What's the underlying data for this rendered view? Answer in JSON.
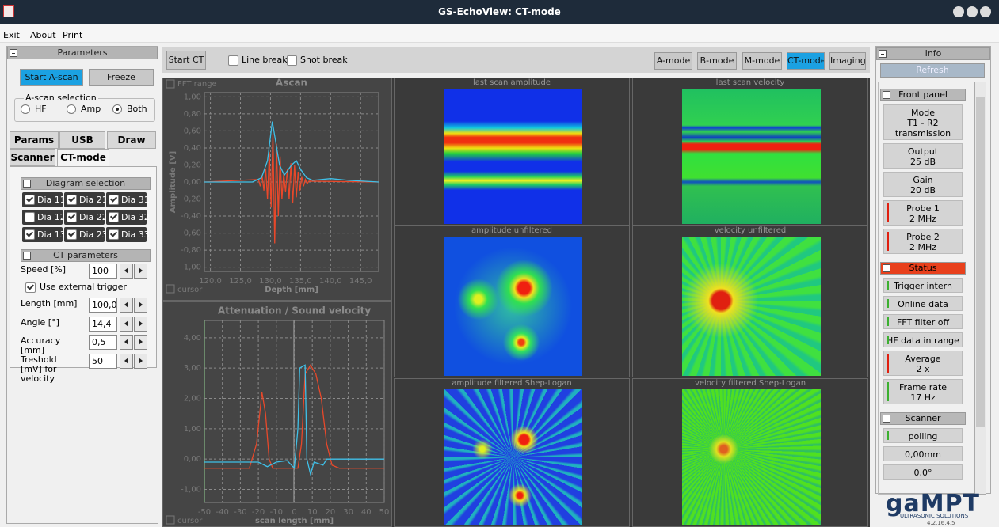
{
  "window": {
    "title": "GS-EchoView: CT-mode"
  },
  "menu": [
    "Exit",
    "About",
    "Print"
  ],
  "parameters": {
    "title": "Parameters",
    "start": "Start A-scan",
    "freeze": "Freeze",
    "selection_label": "A-scan selection",
    "options": [
      "HF",
      "Amp",
      "Both"
    ],
    "selected": 2
  },
  "tabs": {
    "row1": [
      "Params",
      "USB",
      "Draw"
    ],
    "row2": [
      "Scanner",
      "CT-mode"
    ],
    "active": "CT-mode"
  },
  "diagram_selection": {
    "title": "Diagram selection",
    "items": [
      {
        "label": "Dia 11",
        "checked": true
      },
      {
        "label": "Dia 21",
        "checked": true
      },
      {
        "label": "Dia 31",
        "checked": true
      },
      {
        "label": "Dia 12",
        "checked": false
      },
      {
        "label": "Dia 22",
        "checked": true
      },
      {
        "label": "Dia 32",
        "checked": true
      },
      {
        "label": "Dia 13",
        "checked": true
      },
      {
        "label": "Dia 23",
        "checked": true
      },
      {
        "label": "Dia 33",
        "checked": true
      }
    ]
  },
  "ct_parameters": {
    "title": "CT parameters",
    "speed": {
      "label": "Speed [%]",
      "value": "100"
    },
    "external_trigger": {
      "label": "Use external trigger",
      "checked": true
    },
    "fields": [
      {
        "label": "Length [mm]",
        "value": "100,0"
      },
      {
        "label": "Angle [°]",
        "value": "14,4"
      },
      {
        "label": "Accuracy [mm]",
        "value": "0,5"
      },
      {
        "label": "Treshold [mV] for velocity",
        "value": "50"
      }
    ]
  },
  "toolbar": {
    "start": "Start CT",
    "line_break": "Line break",
    "shot_break": "Shot break",
    "modes": [
      "A-mode",
      "B-mode",
      "M-mode",
      "CT-mode",
      "Imaging"
    ],
    "active_mode": 3
  },
  "ascan": {
    "fft": "FFT range",
    "title": "Ascan",
    "ylabel": "Amplitude [V]",
    "xlabel": "Depth [mm]",
    "cursor": "cursor",
    "xlim": [
      119,
      148
    ],
    "ylim": [
      -1.05,
      1.05
    ],
    "xticks": [
      {
        "value": 120,
        "label": "120,0"
      },
      {
        "value": 125,
        "label": "125,0"
      },
      {
        "value": 130,
        "label": "130,0"
      },
      {
        "value": 135,
        "label": "135,0"
      },
      {
        "value": 140,
        "label": "140,0"
      },
      {
        "value": 145,
        "label": "145,0"
      }
    ],
    "yticks": [
      {
        "value": 1,
        "label": "1,00"
      },
      {
        "value": 0.8,
        "label": "0,80"
      },
      {
        "value": 0.6,
        "label": "0,60"
      },
      {
        "value": 0.4,
        "label": "0,40"
      },
      {
        "value": 0.2,
        "label": "0,20"
      },
      {
        "value": 0,
        "label": "0,00"
      },
      {
        "value": -0.2,
        "label": "-0,20"
      },
      {
        "value": -0.4,
        "label": "-0,40"
      },
      {
        "value": -0.6,
        "label": "-0,60"
      },
      {
        "value": -0.8,
        "label": "-0,80"
      },
      {
        "value": -1,
        "label": "-1,00"
      }
    ],
    "series": [
      {
        "color": "#e8482a",
        "x": [
          119,
          128.0,
          128.3,
          128.6,
          128.9,
          129.2,
          129.5,
          129.8,
          130.1,
          130.4,
          130.7,
          131.0,
          131.3,
          131.6,
          131.9,
          132.2,
          132.5,
          132.8,
          133.1,
          133.4,
          133.7,
          134.0,
          134.3,
          134.6,
          134.9,
          135.2,
          135.5,
          135.8,
          136.1,
          136.4,
          148
        ],
        "values": [
          0,
          0.03,
          -0.05,
          0.08,
          -0.1,
          0.15,
          -0.2,
          0.35,
          -0.3,
          0.57,
          -0.72,
          0.45,
          -0.4,
          0.3,
          -0.2,
          0.1,
          -0.12,
          0.15,
          -0.2,
          0.22,
          -0.25,
          0.2,
          -0.18,
          0.12,
          -0.1,
          0.06,
          -0.05,
          0.03,
          -0.02,
          0.01,
          0
        ]
      },
      {
        "color": "#3fc0e8",
        "x": [
          119,
          127,
          128.5,
          129.5,
          130.3,
          130.8,
          131.5,
          132.3,
          133.5,
          134.3,
          135,
          136,
          137,
          140,
          143,
          148
        ],
        "values": [
          0,
          0,
          0.05,
          0.25,
          0.71,
          0.5,
          0.2,
          0.08,
          0.2,
          0.25,
          0.15,
          0.05,
          0.02,
          0.04,
          0.02,
          0
        ]
      }
    ]
  },
  "attenuation": {
    "title": "Attenuation / Sound velocity",
    "xlabel": "scan length [mm]",
    "cursor": "cursor",
    "xlim": [
      -50,
      50
    ],
    "ylim": [
      -1.43,
      4.57
    ],
    "xticks": [
      -50,
      -40,
      -30,
      -20,
      -10,
      0,
      10,
      20,
      30,
      40,
      50
    ],
    "yticks": [
      {
        "value": 4,
        "label": "4,00"
      },
      {
        "value": 3,
        "label": "3,00"
      },
      {
        "value": 2,
        "label": "2,00"
      },
      {
        "value": 1,
        "label": "1,00"
      },
      {
        "value": 0,
        "label": "0,00"
      },
      {
        "value": -1,
        "label": "-1,00"
      }
    ],
    "series": [
      {
        "color": "#e8482a",
        "x": [
          -50,
          -25,
          -21,
          -18,
          -16,
          -14,
          -12,
          2,
          4,
          6,
          9,
          12,
          15,
          18,
          21,
          25,
          50
        ],
        "values": [
          -0.3,
          -0.3,
          0.5,
          2.2,
          1.5,
          0,
          -0.3,
          -0.3,
          0.5,
          2.8,
          3.1,
          2.8,
          2,
          0.5,
          -0.2,
          -0.3,
          -0.3
        ]
      },
      {
        "color": "#3fc0e8",
        "x": [
          -50,
          -20,
          -15,
          -10,
          -4,
          0,
          2,
          3,
          6,
          7,
          9,
          11,
          16,
          18,
          50
        ],
        "values": [
          -0.1,
          -0.1,
          -0.25,
          -0.1,
          -0.05,
          -0.3,
          1,
          3,
          3.1,
          0,
          -0.5,
          -0.1,
          -0.2,
          0,
          0
        ]
      }
    ]
  },
  "images": [
    "last scan amplitude",
    "last scan velocity",
    "amplitude unfiltered",
    "velocity unfiltered",
    "amplitude filtered Shep-Logan",
    "velocity filtered Shep-Logan"
  ],
  "info": {
    "title": "Info",
    "refresh": "Refresh",
    "sections": [
      {
        "title": "Front panel",
        "header_color": "#b8b8b8",
        "items": [
          {
            "lines": [
              "Mode",
              "T1 - R2",
              "transmission"
            ],
            "indicator": null
          },
          {
            "lines": [
              "Output",
              "25 dB"
            ],
            "indicator": null
          },
          {
            "lines": [
              "Gain",
              "20 dB"
            ],
            "indicator": null
          },
          {
            "lines": [
              "Probe 1",
              "2 MHz"
            ],
            "indicator": "#e02010"
          },
          {
            "lines": [
              "Probe 2",
              "2 MHz"
            ],
            "indicator": "#e02010"
          }
        ]
      },
      {
        "title": "Status",
        "header_color": "#e8401c",
        "items": [
          {
            "lines": [
              "Trigger intern"
            ],
            "indicator": "#3cb030"
          },
          {
            "lines": [
              "Online data"
            ],
            "indicator": "#3cb030"
          },
          {
            "lines": [
              "FFT filter off"
            ],
            "indicator": "#3cb030"
          },
          {
            "lines": [
              "HF data in range"
            ],
            "indicator": "#3cb030"
          },
          {
            "lines": [
              "Average",
              "2 x"
            ],
            "indicator": "#e02010"
          },
          {
            "lines": [
              "Frame rate",
              "17 Hz"
            ],
            "indicator": "#3cb030"
          }
        ]
      },
      {
        "title": "Scanner",
        "header_color": "#b8b8b8",
        "items": [
          {
            "lines": [
              "polling"
            ],
            "indicator": "#3cb030"
          },
          {
            "lines": [
              "0,00mm"
            ],
            "indicator": null
          },
          {
            "lines": [
              "0,0°"
            ],
            "indicator": null
          }
        ]
      }
    ]
  },
  "logo": {
    "brand": "gaMPT",
    "tagline": "ULTRASONIC SOLUTIONS",
    "version": "4.2.16.4.5"
  }
}
